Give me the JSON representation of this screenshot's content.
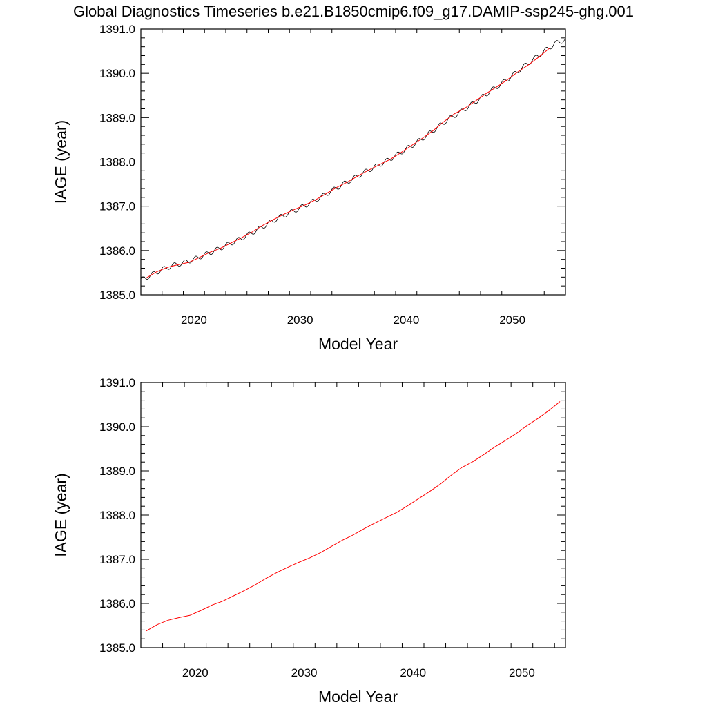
{
  "title": "Global Diagnostics Timeseries b.e21.B1850cmip6.f09_g17.DAMIP-ssp245-ghg.001",
  "colors": {
    "raw_line": "#000000",
    "smooth_line": "#ff0000",
    "frame": "#000000"
  },
  "chart_data": [
    {
      "type": "line",
      "xlabel": "Model Year",
      "ylabel": "IAGE (year)",
      "xlim": [
        2015,
        2055
      ],
      "ylim": [
        1385.0,
        1391.0
      ],
      "x_ticks": [
        "2020",
        "2030",
        "2040",
        "2050"
      ],
      "y_ticks": [
        "1385.0",
        "1386.0",
        "1387.0",
        "1388.0",
        "1389.0",
        "1390.0",
        "1391.0"
      ],
      "grid": false,
      "series": [
        {
          "color": "#000000",
          "style": "monthly, seasonal oscillation ~0.06 yr amplitude",
          "x": [
            2015.0,
            2016.0,
            2017.0,
            2018.0,
            2019.0,
            2020.0,
            2021.0,
            2022.0,
            2023.0,
            2024.0,
            2025.0,
            2026.0,
            2027.0,
            2028.0,
            2029.0,
            2030.0,
            2031.0,
            2032.0,
            2033.0,
            2034.0,
            2035.0,
            2036.0,
            2037.0,
            2038.0,
            2039.0,
            2040.0,
            2041.0,
            2042.0,
            2043.0,
            2044.0,
            2045.0,
            2046.0,
            2047.0,
            2048.0,
            2049.0,
            2050.0,
            2051.0,
            2052.0,
            2053.0,
            2054.0,
            2055.0
          ],
          "y": [
            1385.33,
            1385.45,
            1385.57,
            1385.66,
            1385.72,
            1385.8,
            1385.9,
            1386.0,
            1386.11,
            1386.22,
            1386.34,
            1386.47,
            1386.61,
            1386.74,
            1386.85,
            1386.96,
            1387.08,
            1387.21,
            1387.35,
            1387.49,
            1387.62,
            1387.76,
            1387.88,
            1388.0,
            1388.14,
            1388.29,
            1388.44,
            1388.61,
            1388.79,
            1388.97,
            1389.11,
            1389.27,
            1389.44,
            1389.61,
            1389.77,
            1389.95,
            1390.14,
            1390.32,
            1390.5,
            1390.67,
            1390.76
          ]
        },
        {
          "color": "#ff0000",
          "style": "annual mean",
          "x": [
            2015.5,
            2016.5,
            2017.5,
            2018.5,
            2019.5,
            2020.5,
            2021.5,
            2022.5,
            2023.5,
            2024.5,
            2025.5,
            2026.5,
            2027.5,
            2028.5,
            2029.5,
            2030.5,
            2031.5,
            2032.5,
            2033.5,
            2034.5,
            2035.5,
            2036.5,
            2037.5,
            2038.5,
            2039.5,
            2040.5,
            2041.5,
            2042.5,
            2043.5,
            2044.5,
            2045.5,
            2046.5,
            2047.5,
            2048.5,
            2049.5,
            2050.5,
            2051.5,
            2052.5,
            2053.5
          ],
          "y": [
            1385.38,
            1385.52,
            1385.62,
            1385.68,
            1385.73,
            1385.84,
            1385.96,
            1386.05,
            1386.17,
            1386.29,
            1386.42,
            1386.57,
            1386.7,
            1386.82,
            1386.93,
            1387.03,
            1387.15,
            1387.29,
            1387.43,
            1387.55,
            1387.69,
            1387.82,
            1387.94,
            1388.06,
            1388.21,
            1388.37,
            1388.53,
            1388.7,
            1388.9,
            1389.08,
            1389.21,
            1389.37,
            1389.54,
            1389.69,
            1389.85,
            1390.03,
            1390.19,
            1390.37,
            1390.57
          ]
        }
      ]
    },
    {
      "type": "line",
      "xlabel": "Model Year",
      "ylabel": "IAGE (year)",
      "xlim": [
        2015,
        2054
      ],
      "ylim": [
        1385.0,
        1391.0
      ],
      "x_ticks": [
        "2020",
        "2030",
        "2040",
        "2050"
      ],
      "y_ticks": [
        "1385.0",
        "1386.0",
        "1387.0",
        "1388.0",
        "1389.0",
        "1390.0",
        "1391.0"
      ],
      "grid": false,
      "series": [
        {
          "color": "#ff0000",
          "style": "annual mean",
          "x": [
            2015.5,
            2016.5,
            2017.5,
            2018.5,
            2019.5,
            2020.5,
            2021.5,
            2022.5,
            2023.5,
            2024.5,
            2025.5,
            2026.5,
            2027.5,
            2028.5,
            2029.5,
            2030.5,
            2031.5,
            2032.5,
            2033.5,
            2034.5,
            2035.5,
            2036.5,
            2037.5,
            2038.5,
            2039.5,
            2040.5,
            2041.5,
            2042.5,
            2043.5,
            2044.5,
            2045.5,
            2046.5,
            2047.5,
            2048.5,
            2049.5,
            2050.5,
            2051.5,
            2052.5,
            2053.5
          ],
          "y": [
            1385.38,
            1385.52,
            1385.62,
            1385.68,
            1385.73,
            1385.84,
            1385.96,
            1386.05,
            1386.17,
            1386.29,
            1386.42,
            1386.57,
            1386.7,
            1386.82,
            1386.93,
            1387.03,
            1387.15,
            1387.29,
            1387.43,
            1387.55,
            1387.69,
            1387.82,
            1387.94,
            1388.06,
            1388.21,
            1388.37,
            1388.53,
            1388.7,
            1388.9,
            1389.08,
            1389.21,
            1389.37,
            1389.54,
            1389.69,
            1389.85,
            1390.03,
            1390.19,
            1390.37,
            1390.57
          ]
        }
      ]
    }
  ]
}
